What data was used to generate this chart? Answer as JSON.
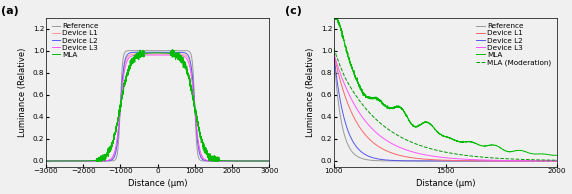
{
  "panel_a_label": "(a)",
  "panel_c_label": "(c)",
  "xlabel": "Distance (μm)",
  "ylabel": "Luminance (Relative)",
  "panel_a": {
    "xlim": [
      -3000,
      3000
    ],
    "ylim": [
      -0.05,
      1.3
    ],
    "yticks": [
      0.0,
      0.2,
      0.4,
      0.6,
      0.8,
      1.0,
      1.2
    ],
    "xticks": [
      -3000,
      -2000,
      -1000,
      0,
      1000,
      2000,
      3000
    ],
    "series": [
      {
        "name": "Reference",
        "color": "#999999",
        "lw": 0.7,
        "rise": 30,
        "peak": 1.0,
        "noise": 0.0
      },
      {
        "name": "Device L1",
        "color": "#FF9999",
        "lw": 0.7,
        "rise": 55,
        "peak": 0.97,
        "noise": 0.0
      },
      {
        "name": "Device L2",
        "color": "#5555FF",
        "lw": 0.7,
        "rise": 50,
        "peak": 0.985,
        "noise": 0.0
      },
      {
        "name": "Device L3",
        "color": "#FF55FF",
        "lw": 0.7,
        "rise": 65,
        "peak": 0.96,
        "noise": 0.0
      },
      {
        "name": "MLA",
        "color": "#00BB00",
        "lw": 0.7,
        "rise": 130,
        "peak": 0.98,
        "noise": 0.015
      }
    ]
  },
  "panel_c": {
    "xlim": [
      1000,
      2000
    ],
    "ylim": [
      -0.05,
      1.3
    ],
    "yticks": [
      0.0,
      0.2,
      0.4,
      0.6,
      0.8,
      1.0,
      1.2
    ],
    "xticks": [
      1000,
      1500,
      2000
    ],
    "ref_decay": 0.03,
    "l1_decay": 0.01,
    "l2_decay": 0.02,
    "l3_decay": 0.007,
    "mla_decay": 0.003,
    "mla_mod_decay": 0.005,
    "colors": {
      "Reference": "#999999",
      "Device L1": "#FF6666",
      "Device L2": "#5555EE",
      "Device L3": "#FF55FF",
      "MLA": "#00BB00",
      "MLA_mod": "#009900"
    }
  },
  "legend_fontsize": 5.2,
  "axis_fontsize": 6.0,
  "tick_fontsize": 5.2,
  "label_fontsize": 8,
  "bg_color": "#F0F0F0"
}
